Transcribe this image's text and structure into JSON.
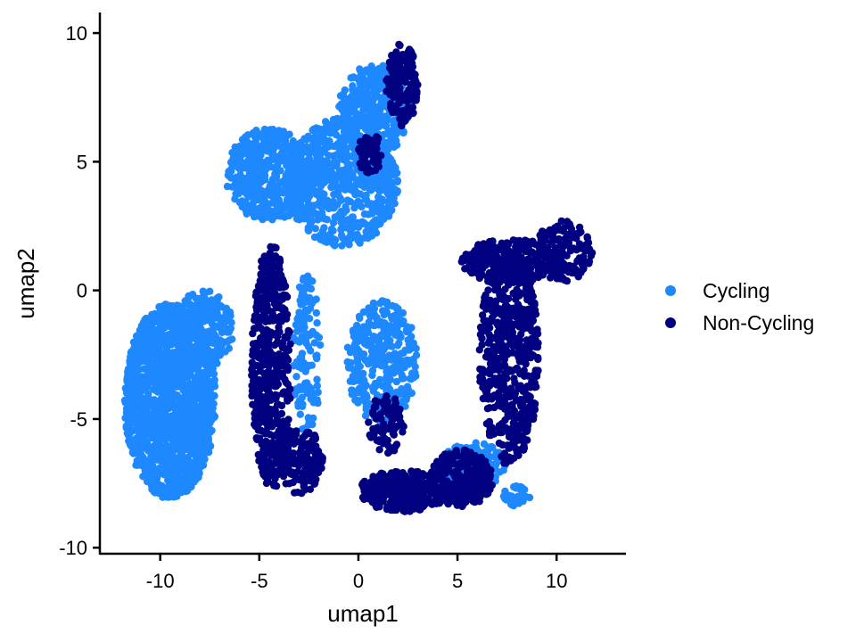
{
  "chart_data": {
    "type": "scatter",
    "title": "",
    "xlabel": "umap1",
    "ylabel": "umap2",
    "xlim": [
      -13,
      13.5
    ],
    "ylim": [
      -10.2,
      10.8
    ],
    "xticks": [
      -10,
      -5,
      0,
      5,
      10
    ],
    "yticks": [
      -10,
      -5,
      0,
      5,
      10
    ],
    "xtick_labels": [
      "-10",
      "-5",
      "0",
      "5",
      "10"
    ],
    "ytick_labels": [
      "-10",
      "-5",
      "0",
      "5",
      "10"
    ],
    "grid": false,
    "legend_position": "right",
    "series": [
      {
        "name": "Cycling",
        "color": "#1E88FF",
        "regions": [
          {
            "cx": -9.5,
            "cy": -4.3,
            "rx": 2.3,
            "ry": 3.8,
            "n": 1400
          },
          {
            "cx": -7.8,
            "cy": -1.5,
            "rx": 1.5,
            "ry": 1.5,
            "n": 250
          },
          {
            "cx": -4.5,
            "cy": 4.5,
            "rx": 2.2,
            "ry": 1.8,
            "n": 450
          },
          {
            "cx": -0.8,
            "cy": 4.2,
            "rx": 2.8,
            "ry": 2.5,
            "n": 650
          },
          {
            "cx": 0.8,
            "cy": 7.0,
            "rx": 1.8,
            "ry": 1.8,
            "n": 350
          },
          {
            "cx": 1.2,
            "cy": -2.8,
            "rx": 1.8,
            "ry": 2.4,
            "n": 350
          },
          {
            "cx": -2.6,
            "cy": -2.5,
            "rx": 0.7,
            "ry": 3.2,
            "n": 120
          },
          {
            "cx": 5.8,
            "cy": -6.8,
            "rx": 1.6,
            "ry": 0.9,
            "n": 110
          },
          {
            "cx": 8.0,
            "cy": -8.0,
            "rx": 0.7,
            "ry": 0.4,
            "n": 35
          }
        ]
      },
      {
        "name": "Non-Cycling",
        "color": "#000080",
        "regions": [
          {
            "cx": -4.4,
            "cy": -3.0,
            "rx": 1.0,
            "ry": 4.8,
            "n": 500
          },
          {
            "cx": -3.0,
            "cy": -6.6,
            "rx": 1.2,
            "ry": 1.3,
            "n": 180
          },
          {
            "cx": 2.3,
            "cy": -7.8,
            "rx": 2.3,
            "ry": 0.8,
            "n": 300
          },
          {
            "cx": 5.2,
            "cy": -7.3,
            "rx": 1.6,
            "ry": 1.1,
            "n": 250
          },
          {
            "cx": 7.6,
            "cy": -2.6,
            "rx": 1.5,
            "ry": 4.2,
            "n": 550
          },
          {
            "cx": 7.7,
            "cy": 1.1,
            "rx": 2.5,
            "ry": 0.9,
            "n": 250
          },
          {
            "cx": 10.3,
            "cy": 1.5,
            "rx": 1.5,
            "ry": 1.2,
            "n": 140
          },
          {
            "cx": 2.2,
            "cy": 8.0,
            "rx": 0.8,
            "ry": 1.6,
            "n": 170
          },
          {
            "cx": 0.6,
            "cy": 5.3,
            "rx": 0.6,
            "ry": 0.9,
            "n": 60
          },
          {
            "cx": 1.4,
            "cy": -5.2,
            "rx": 0.9,
            "ry": 1.2,
            "n": 80
          }
        ]
      }
    ]
  },
  "legend": {
    "items": [
      {
        "label": "Cycling",
        "color": "#1E88FF"
      },
      {
        "label": "Non-Cycling",
        "color": "#000080"
      }
    ]
  }
}
